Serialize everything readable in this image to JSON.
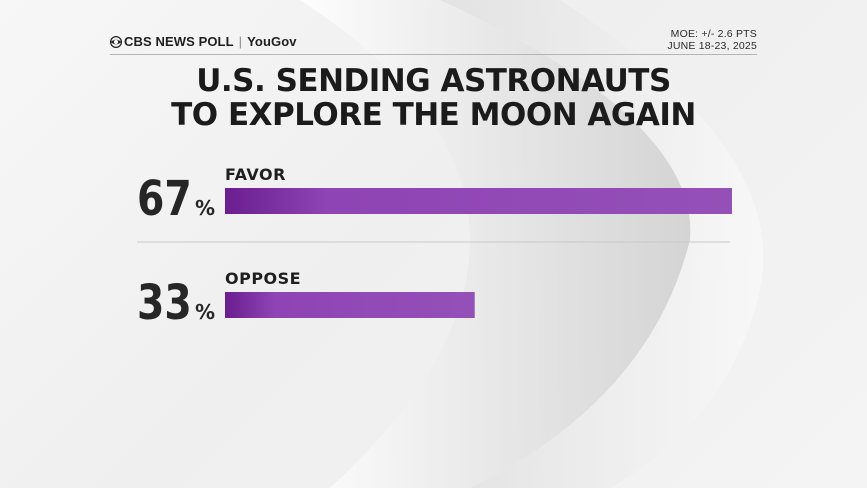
{
  "header": {
    "brand": "CBS NEWS POLL",
    "partner": "YouGov",
    "moe": "MOE: +/- 2.6 PTS",
    "dates": "JUNE 18-23, 2025"
  },
  "title_line1": "U.S. SENDING ASTRONAUTS",
  "title_line2": "TO EXPLORE THE MOON AGAIN",
  "chart_data": {
    "type": "bar",
    "orientation": "horizontal",
    "title": "U.S. SENDING ASTRONAUTS TO EXPLORE THE MOON AGAIN",
    "categories": [
      "FAVOR",
      "OPPOSE"
    ],
    "values": [
      67,
      33
    ],
    "unit": "%",
    "xlim": [
      0,
      67
    ],
    "grid": false,
    "legend": "none",
    "colors": {
      "bar": "#8e44b4",
      "bar_dark": "#6a1e90"
    }
  }
}
